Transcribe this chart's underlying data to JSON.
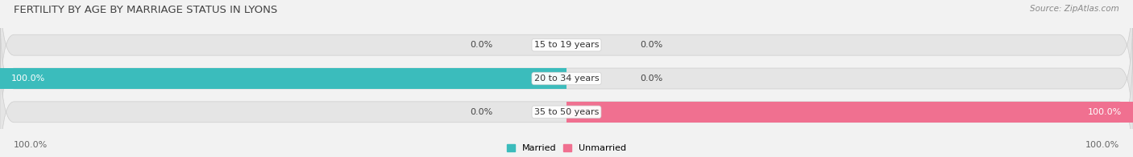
{
  "title": "FERTILITY BY AGE BY MARRIAGE STATUS IN LYONS",
  "source": "Source: ZipAtlas.com",
  "rows": [
    {
      "label": "15 to 19 years",
      "married": 0.0,
      "unmarried": 0.0
    },
    {
      "label": "20 to 34 years",
      "married": 100.0,
      "unmarried": 0.0
    },
    {
      "label": "35 to 50 years",
      "married": 0.0,
      "unmarried": 100.0
    }
  ],
  "married_color": "#3bbcbc",
  "unmarried_color": "#f07090",
  "bar_bg_color": "#e5e5e5",
  "bar_bg_outline": "#d5d5d5",
  "xlim": [
    -100,
    100
  ],
  "legend_married": "Married",
  "legend_unmarried": "Unmarried",
  "axis_label_left": "100.0%",
  "axis_label_right": "100.0%",
  "title_fontsize": 9.5,
  "source_fontsize": 7.5,
  "label_fontsize": 8,
  "value_fontsize": 8,
  "tick_fontsize": 8,
  "bg_color": "#f2f2f2",
  "title_color": "#444444",
  "source_color": "#888888",
  "value_color": "#444444"
}
